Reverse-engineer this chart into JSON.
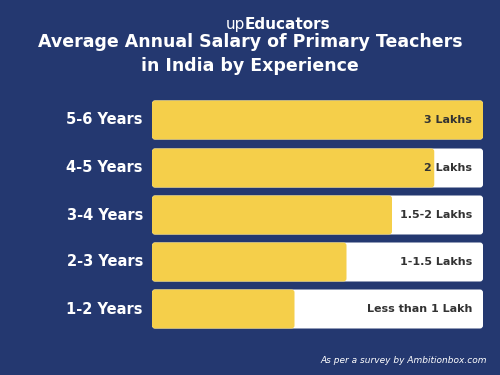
{
  "title_brand_up": "up",
  "title_brand_main": "Educators",
  "title": "Average Annual Salary of Primary Teachers\nin India by Experience",
  "categories": [
    "1-2 Years",
    "2-3 Years",
    "3-4 Years",
    "4-5 Years",
    "5-6 Years"
  ],
  "values": [
    0.42,
    0.58,
    0.72,
    0.85,
    1.0
  ],
  "labels": [
    "Less than 1 Lakh",
    "1-1.5 Lakhs",
    "1.5-2 Lakhs",
    "2 Lakhs",
    "3 Lakhs"
  ],
  "bar_color": "#F5CF4A",
  "bg_color": "#243870",
  "text_color": "#FFFFFF",
  "label_color": "#333333",
  "footer": "As per a survey by Ambitionbox.com",
  "bar_bg_color": "#FFFFFF"
}
